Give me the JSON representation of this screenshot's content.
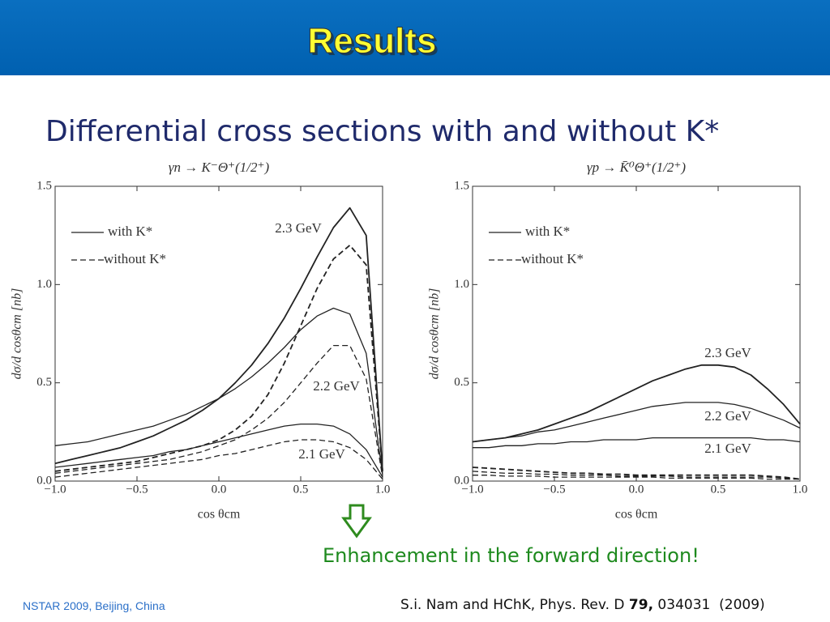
{
  "slide": {
    "title": "Results",
    "subtitle": "Differential cross sections with and without K*",
    "annotation": "Enhancement in the forward direction!",
    "footer_left": "NSTAR 2009, Beijing, China",
    "reference": [
      "S.i. Nam and HChK, Phys. Rev. D ",
      "79,",
      " 034031  (2009)"
    ]
  },
  "chart_data": [
    {
      "type": "line",
      "title": "γn → K⁻Θ⁺(1/2⁺)",
      "x_label": "cos θcm",
      "y_label": "dσ/d cosθcm [nb]",
      "x": [
        -1.0,
        -0.9,
        -0.8,
        -0.7,
        -0.6,
        -0.5,
        -0.4,
        -0.3,
        -0.2,
        -0.1,
        0.0,
        0.1,
        0.2,
        0.3,
        0.4,
        0.5,
        0.6,
        0.7,
        0.8,
        0.9,
        1.0
      ],
      "xlim": [
        -1,
        1
      ],
      "ylim": [
        0,
        1.5
      ],
      "xticks": [
        {
          "value": -1,
          "label": "−1.0"
        },
        {
          "value": -0.5,
          "label": "−0.5"
        },
        {
          "value": 0,
          "label": "0.0"
        },
        {
          "value": 0.5,
          "label": "0.5"
        },
        {
          "value": 1,
          "label": "1.0"
        }
      ],
      "yticks": [
        {
          "value": 0,
          "label": "0.0"
        },
        {
          "value": 0.5,
          "label": "0.5"
        },
        {
          "value": 1,
          "label": "1.0"
        },
        {
          "value": 1.5,
          "label": "1.5"
        }
      ],
      "legend": [
        {
          "label": "with K*",
          "dashed": false
        },
        {
          "label": "without K*",
          "dashed": true
        }
      ],
      "color": "#222222",
      "series": [
        {
          "name": "2.3 GeV",
          "dashed": false,
          "values": [
            0.09,
            0.11,
            0.13,
            0.15,
            0.17,
            0.2,
            0.23,
            0.27,
            0.31,
            0.36,
            0.42,
            0.5,
            0.59,
            0.7,
            0.83,
            0.98,
            1.14,
            1.29,
            1.39,
            1.25,
            0.05
          ]
        },
        {
          "dashed": true,
          "values": [
            0.05,
            0.06,
            0.07,
            0.08,
            0.09,
            0.1,
            0.12,
            0.14,
            0.16,
            0.18,
            0.21,
            0.26,
            0.33,
            0.44,
            0.6,
            0.79,
            0.98,
            1.13,
            1.2,
            1.1,
            0.05
          ]
        },
        {
          "name": "2.2 GeV",
          "dashed": false,
          "values": [
            0.18,
            0.19,
            0.2,
            0.22,
            0.24,
            0.26,
            0.28,
            0.31,
            0.34,
            0.38,
            0.42,
            0.47,
            0.53,
            0.6,
            0.68,
            0.77,
            0.84,
            0.88,
            0.85,
            0.65,
            0.03
          ]
        },
        {
          "dashed": true,
          "values": [
            0.04,
            0.05,
            0.06,
            0.07,
            0.08,
            0.09,
            0.1,
            0.11,
            0.13,
            0.15,
            0.18,
            0.21,
            0.26,
            0.32,
            0.4,
            0.5,
            0.6,
            0.69,
            0.69,
            0.52,
            0.02
          ]
        },
        {
          "name": "2.1 GeV",
          "dashed": false,
          "values": [
            0.07,
            0.08,
            0.09,
            0.1,
            0.11,
            0.12,
            0.13,
            0.15,
            0.16,
            0.18,
            0.2,
            0.22,
            0.24,
            0.26,
            0.28,
            0.29,
            0.29,
            0.28,
            0.24,
            0.16,
            0.02
          ]
        },
        {
          "dashed": true,
          "values": [
            0.02,
            0.03,
            0.04,
            0.05,
            0.06,
            0.07,
            0.08,
            0.09,
            0.1,
            0.11,
            0.13,
            0.14,
            0.16,
            0.18,
            0.2,
            0.21,
            0.21,
            0.2,
            0.17,
            0.11,
            0.01
          ]
        }
      ]
    },
    {
      "type": "line",
      "title": "γp → K̄⁰Θ⁺(1/2⁺)",
      "x_label": "cos θcm",
      "y_label": "dσ/d cosθcm [nb]",
      "x": [
        -1.0,
        -0.9,
        -0.8,
        -0.7,
        -0.6,
        -0.5,
        -0.4,
        -0.3,
        -0.2,
        -0.1,
        0.0,
        0.1,
        0.2,
        0.3,
        0.4,
        0.5,
        0.6,
        0.7,
        0.8,
        0.9,
        1.0
      ],
      "xlim": [
        -1,
        1
      ],
      "ylim": [
        0,
        1.5
      ],
      "xticks": [
        {
          "value": -1,
          "label": "−1.0"
        },
        {
          "value": -0.5,
          "label": "−0.5"
        },
        {
          "value": 0,
          "label": "0.0"
        },
        {
          "value": 0.5,
          "label": "0.5"
        },
        {
          "value": 1,
          "label": "1.0"
        }
      ],
      "yticks": [
        {
          "value": 0,
          "label": "0.0"
        },
        {
          "value": 0.5,
          "label": "0.5"
        },
        {
          "value": 1,
          "label": "1.0"
        },
        {
          "value": 1.5,
          "label": "1.5"
        }
      ],
      "legend": [
        {
          "label": "with K*",
          "dashed": false
        },
        {
          "label": "without K*",
          "dashed": true
        }
      ],
      "color": "#222222",
      "series": [
        {
          "name": "2.3 GeV",
          "dashed": false,
          "values": [
            0.2,
            0.21,
            0.22,
            0.24,
            0.26,
            0.29,
            0.32,
            0.35,
            0.39,
            0.43,
            0.47,
            0.51,
            0.54,
            0.57,
            0.59,
            0.59,
            0.58,
            0.54,
            0.47,
            0.39,
            0.29
          ]
        },
        {
          "dashed": true,
          "values": [
            0.07,
            0.065,
            0.06,
            0.055,
            0.05,
            0.045,
            0.04,
            0.04,
            0.035,
            0.035,
            0.03,
            0.03,
            0.03,
            0.03,
            0.03,
            0.03,
            0.03,
            0.03,
            0.025,
            0.02,
            0.01
          ]
        },
        {
          "name": "2.2 GeV",
          "dashed": false,
          "values": [
            0.2,
            0.21,
            0.22,
            0.23,
            0.25,
            0.26,
            0.28,
            0.3,
            0.32,
            0.34,
            0.36,
            0.38,
            0.39,
            0.4,
            0.4,
            0.4,
            0.39,
            0.37,
            0.34,
            0.31,
            0.27
          ]
        },
        {
          "dashed": true,
          "values": [
            0.05,
            0.045,
            0.04,
            0.04,
            0.035,
            0.035,
            0.03,
            0.03,
            0.03,
            0.025,
            0.025,
            0.025,
            0.025,
            0.02,
            0.02,
            0.02,
            0.02,
            0.02,
            0.02,
            0.015,
            0.01
          ]
        },
        {
          "name": "2.1 GeV",
          "dashed": false,
          "values": [
            0.17,
            0.17,
            0.18,
            0.18,
            0.19,
            0.19,
            0.2,
            0.2,
            0.21,
            0.21,
            0.21,
            0.22,
            0.22,
            0.22,
            0.22,
            0.22,
            0.22,
            0.22,
            0.21,
            0.21,
            0.2
          ]
        },
        {
          "dashed": true,
          "values": [
            0.03,
            0.03,
            0.025,
            0.025,
            0.025,
            0.02,
            0.02,
            0.02,
            0.02,
            0.02,
            0.02,
            0.02,
            0.015,
            0.015,
            0.015,
            0.015,
            0.015,
            0.015,
            0.01,
            0.01,
            0.01
          ]
        }
      ]
    }
  ]
}
